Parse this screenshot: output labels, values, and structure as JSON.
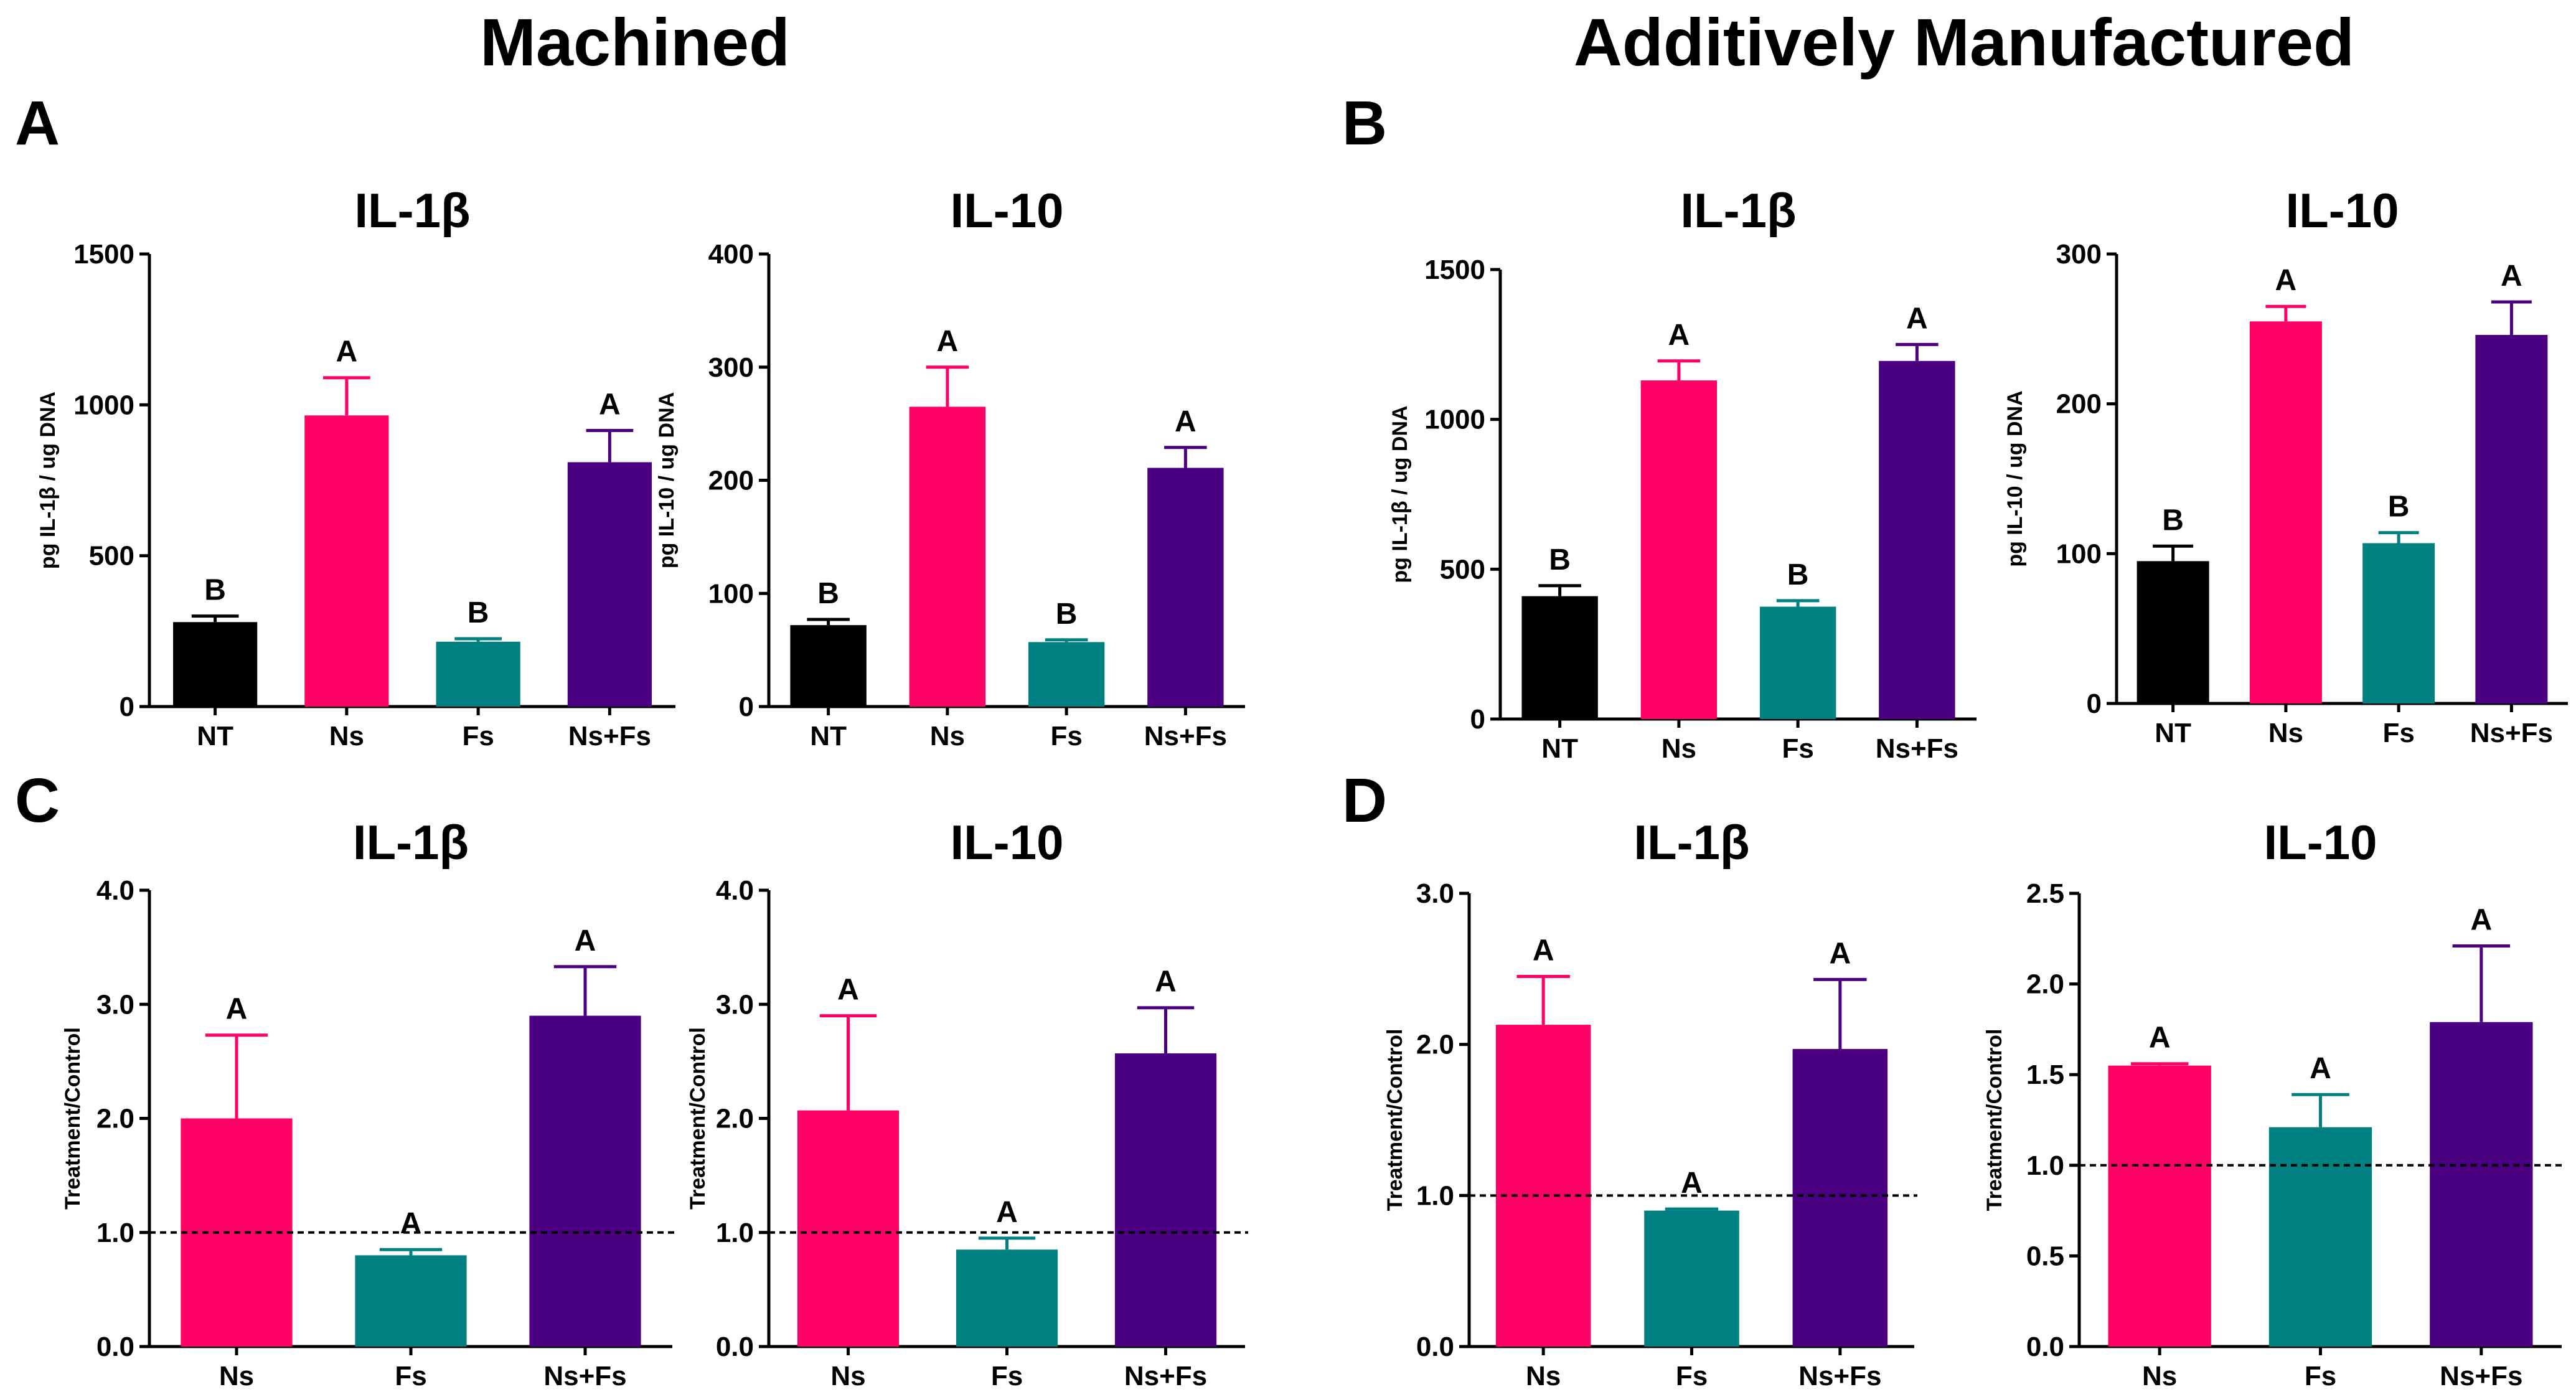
{
  "section_titles": {
    "machined": "Machined",
    "additive": "Additively Manufactured"
  },
  "panel_letters": {
    "A": "A",
    "B": "B",
    "C": "C",
    "D": "D"
  },
  "colors": {
    "NT": "#000000",
    "Ns": "#ff0066",
    "Fs": "#008080",
    "NsFs": "#4b0082"
  },
  "chart_data": [
    {
      "type": "bar",
      "panel": "A",
      "title": "IL-1β",
      "ylabel": "pg IL-1β / ug DNA",
      "ylim": [
        0,
        1500
      ],
      "yticks": [
        0,
        500,
        1000,
        1500
      ],
      "ytick_labels": [
        "0",
        "500",
        "1000",
        "1500"
      ],
      "categories": [
        "NT",
        "Ns",
        "Fs",
        "Ns+Fs"
      ],
      "values": [
        280,
        965,
        215,
        810
      ],
      "errors": [
        20,
        125,
        10,
        105
      ],
      "letters": [
        "B",
        "A",
        "B",
        "A"
      ],
      "colors": [
        "#000000",
        "#ff0066",
        "#008080",
        "#4b0082"
      ],
      "reference_line": null
    },
    {
      "type": "bar",
      "panel": "A",
      "title": "IL-10",
      "ylabel": "pg IL-10 / ug DNA",
      "ylim": [
        0,
        400
      ],
      "yticks": [
        0,
        100,
        200,
        300,
        400
      ],
      "ytick_labels": [
        "0",
        "100",
        "200",
        "300",
        "400"
      ],
      "categories": [
        "NT",
        "Ns",
        "Fs",
        "Ns+Fs"
      ],
      "values": [
        72,
        265,
        57,
        211
      ],
      "errors": [
        5,
        35,
        2,
        18
      ],
      "letters": [
        "B",
        "A",
        "B",
        "A"
      ],
      "colors": [
        "#000000",
        "#ff0066",
        "#008080",
        "#4b0082"
      ],
      "reference_line": null
    },
    {
      "type": "bar",
      "panel": "B",
      "title": "IL-1β",
      "ylabel": "pg IL-1β / ug DNA",
      "ylim": [
        0,
        1500
      ],
      "yticks": [
        0,
        500,
        1000,
        1500
      ],
      "ytick_labels": [
        "0",
        "500",
        "1000",
        "1500"
      ],
      "categories": [
        "NT",
        "Ns",
        "Fs",
        "Ns+Fs"
      ],
      "values": [
        410,
        1130,
        375,
        1195
      ],
      "errors": [
        35,
        65,
        20,
        55
      ],
      "letters": [
        "B",
        "A",
        "B",
        "A"
      ],
      "colors": [
        "#000000",
        "#ff0066",
        "#008080",
        "#4b0082"
      ],
      "reference_line": null
    },
    {
      "type": "bar",
      "panel": "B",
      "title": "IL-10",
      "ylabel": "pg IL-10 / ug DNA",
      "ylim": [
        0,
        300
      ],
      "yticks": [
        0,
        100,
        200,
        300
      ],
      "ytick_labels": [
        "0",
        "100",
        "200",
        "300"
      ],
      "categories": [
        "NT",
        "Ns",
        "Fs",
        "Ns+Fs"
      ],
      "values": [
        95,
        255,
        107,
        246
      ],
      "errors": [
        10,
        10,
        7,
        22
      ],
      "letters": [
        "B",
        "A",
        "B",
        "A"
      ],
      "colors": [
        "#000000",
        "#ff0066",
        "#008080",
        "#4b0082"
      ],
      "reference_line": null
    },
    {
      "type": "bar",
      "panel": "C",
      "title": "IL-1β",
      "ylabel": "Treatment/Control",
      "ylim": [
        0,
        4
      ],
      "yticks": [
        0,
        1,
        2,
        3,
        4
      ],
      "ytick_labels": [
        "0.0",
        "1.0",
        "2.0",
        "3.0",
        "4.0"
      ],
      "categories": [
        "Ns",
        "Fs",
        "Ns+Fs"
      ],
      "values": [
        2.0,
        0.8,
        2.9
      ],
      "errors": [
        0.73,
        0.05,
        0.43
      ],
      "letters": [
        "A",
        "A",
        "A"
      ],
      "colors": [
        "#ff0066",
        "#008080",
        "#4b0082"
      ],
      "reference_line": 1.0
    },
    {
      "type": "bar",
      "panel": "C",
      "title": "IL-10",
      "ylabel": "Treatment/Control",
      "ylim": [
        0,
        4
      ],
      "yticks": [
        0,
        1,
        2,
        3,
        4
      ],
      "ytick_labels": [
        "0.0",
        "1.0",
        "2.0",
        "3.0",
        "4.0"
      ],
      "categories": [
        "Ns",
        "Fs",
        "Ns+Fs"
      ],
      "values": [
        2.07,
        0.85,
        2.57
      ],
      "errors": [
        0.83,
        0.1,
        0.4
      ],
      "letters": [
        "A",
        "A",
        "A"
      ],
      "colors": [
        "#ff0066",
        "#008080",
        "#4b0082"
      ],
      "reference_line": 1.0
    },
    {
      "type": "bar",
      "panel": "D",
      "title": "IL-1β",
      "ylabel": "Treatment/Control",
      "ylim": [
        0,
        3
      ],
      "yticks": [
        0,
        1,
        2,
        3
      ],
      "ytick_labels": [
        "0.0",
        "1.0",
        "2.0",
        "3.0"
      ],
      "categories": [
        "Ns",
        "Fs",
        "Ns+Fs"
      ],
      "values": [
        2.13,
        0.9,
        1.97
      ],
      "errors": [
        0.32,
        0.01,
        0.46
      ],
      "letters": [
        "A",
        "A",
        "A"
      ],
      "colors": [
        "#ff0066",
        "#008080",
        "#4b0082"
      ],
      "reference_line": 1.0
    },
    {
      "type": "bar",
      "panel": "D",
      "title": "IL-10",
      "ylabel": "Treatment/Control",
      "ylim": [
        0,
        2.5
      ],
      "yticks": [
        0,
        0.5,
        1,
        1.5,
        2,
        2.5
      ],
      "ytick_labels": [
        "0.0",
        "0.5",
        "1.0",
        "1.5",
        "2.0",
        "2.5"
      ],
      "categories": [
        "Ns",
        "Fs",
        "Ns+Fs"
      ],
      "values": [
        1.55,
        1.21,
        1.79
      ],
      "errors": [
        0.01,
        0.18,
        0.42
      ],
      "letters": [
        "A",
        "A",
        "A"
      ],
      "colors": [
        "#ff0066",
        "#008080",
        "#4b0082"
      ],
      "reference_line": 1.0
    }
  ]
}
